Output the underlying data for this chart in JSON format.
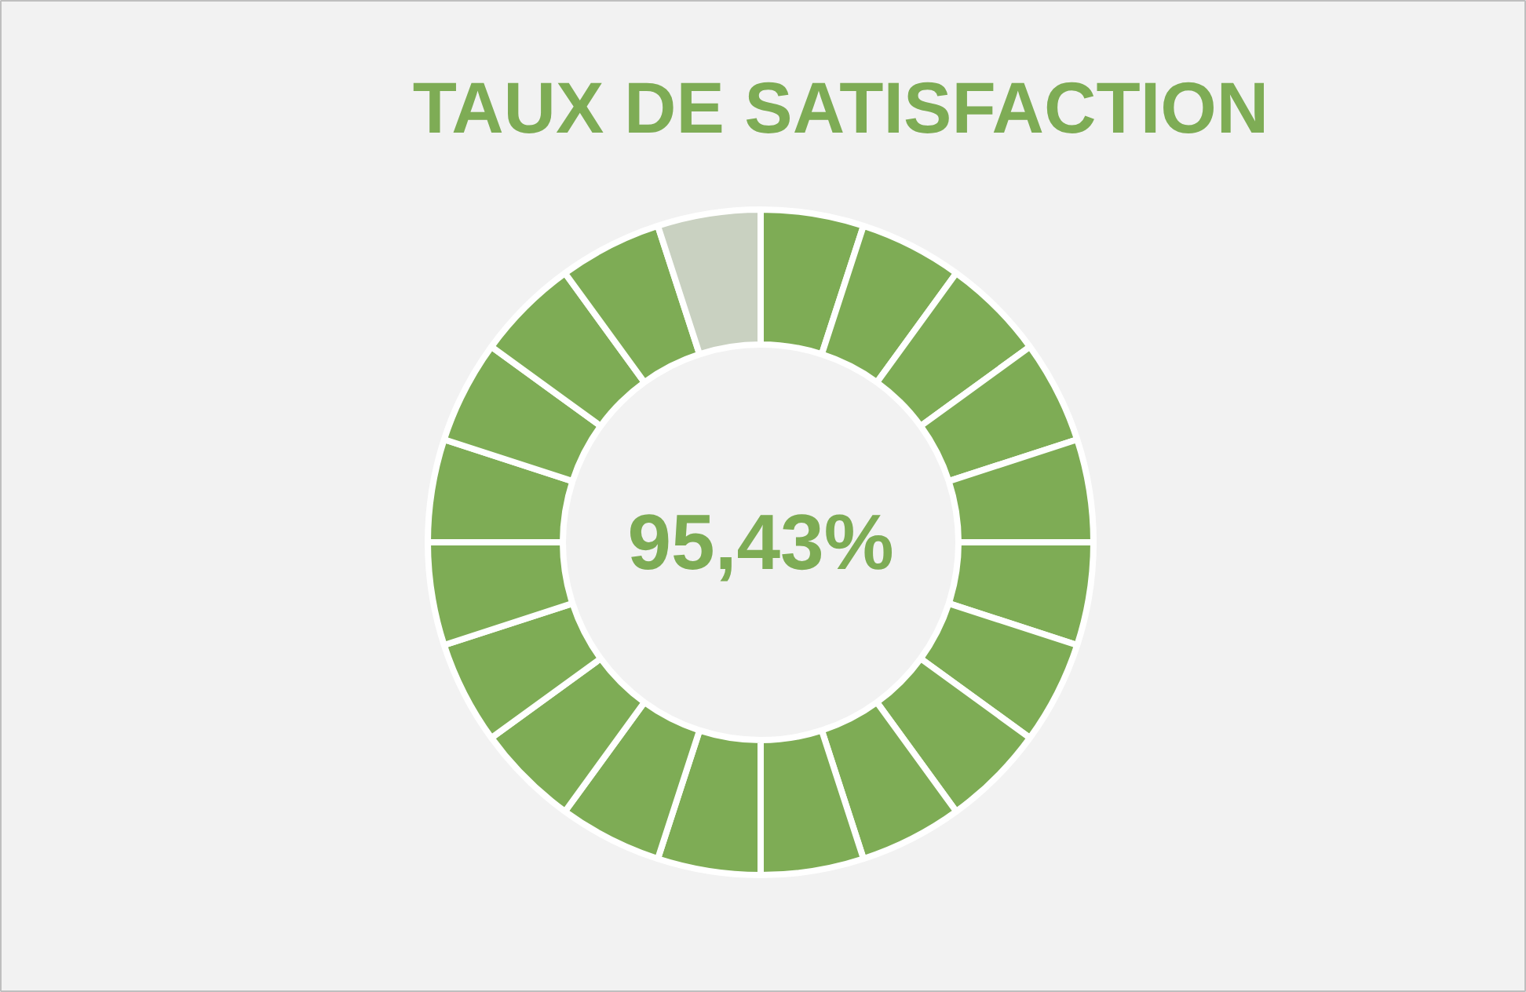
{
  "chart_data": {
    "type": "donut",
    "title": "TAUX DE SATISFACTION",
    "categories": [
      null,
      null,
      null,
      null,
      null,
      null,
      null,
      null,
      null,
      null,
      null,
      null,
      null,
      null,
      null,
      null,
      null,
      null,
      null,
      null
    ],
    "values": [
      5,
      5,
      5,
      5,
      5,
      5,
      5,
      5,
      5,
      5,
      5,
      5,
      5,
      5,
      5,
      5,
      5,
      5,
      5,
      5
    ],
    "colors": [
      "#7eac55",
      "#7eac55",
      "#7eac55",
      "#7eac55",
      "#7eac55",
      "#7eac55",
      "#7eac55",
      "#7eac55",
      "#7eac55",
      "#7eac55",
      "#7eac55",
      "#7eac55",
      "#7eac55",
      "#7eac55",
      "#7eac55",
      "#7eac55",
      "#7eac55",
      "#7eac55",
      "#7eac55",
      "#c9d1c1"
    ],
    "annotations": [
      "95,43%"
    ]
  }
}
